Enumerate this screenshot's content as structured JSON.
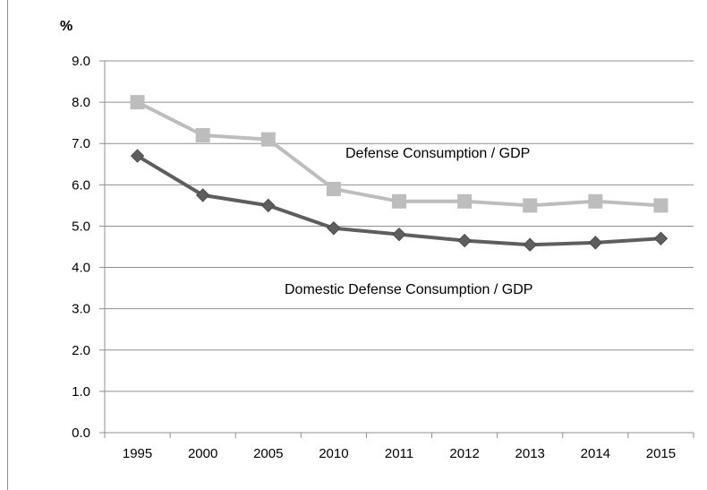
{
  "chart_data": {
    "type": "line",
    "unit_label": "%",
    "categories": [
      "1995",
      "2000",
      "2005",
      "2010",
      "2011",
      "2012",
      "2013",
      "2014",
      "2015"
    ],
    "ylim": [
      0,
      9
    ],
    "y_ticks": [
      "0.0",
      "1.0",
      "2.0",
      "3.0",
      "4.0",
      "5.0",
      "6.0",
      "7.0",
      "8.0",
      "9.0"
    ],
    "grid": true,
    "series": [
      {
        "name": "Defense Consumption / GDP",
        "color": "#bdbdbd",
        "marker": "square",
        "values": [
          8.0,
          7.2,
          7.1,
          5.9,
          5.6,
          5.6,
          5.5,
          5.6,
          5.5
        ]
      },
      {
        "name": "Domestic Defense Consumption / GDP",
        "color": "#5e5e5e",
        "marker": "diamond",
        "values": [
          6.7,
          5.75,
          5.5,
          4.95,
          4.8,
          4.65,
          4.55,
          4.6,
          4.7
        ]
      }
    ]
  }
}
